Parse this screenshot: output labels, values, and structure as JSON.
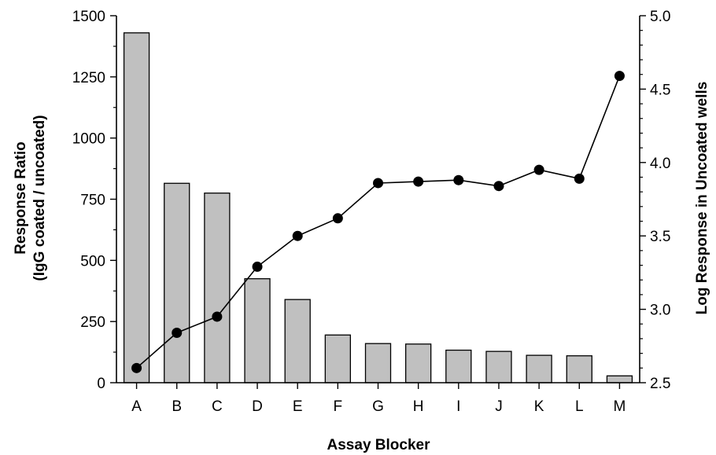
{
  "chart_data": {
    "type": "bar",
    "categories": [
      "A",
      "B",
      "C",
      "D",
      "E",
      "F",
      "G",
      "H",
      "I",
      "J",
      "K",
      "L",
      "M"
    ],
    "series": [
      {
        "axis": "left",
        "type": "bar",
        "values": [
          1430,
          815,
          775,
          425,
          340,
          195,
          160,
          158,
          133,
          128,
          112,
          110,
          28
        ]
      },
      {
        "axis": "right",
        "type": "line",
        "values": [
          2.6,
          2.84,
          2.95,
          3.29,
          3.5,
          3.62,
          3.86,
          3.87,
          3.88,
          3.84,
          3.95,
          3.89,
          4.59
        ]
      }
    ],
    "xlabel": "Assay Blocker",
    "ylabel_left_line1": "Response Ratio",
    "ylabel_left_line2": "(IgG coated / uncoated)",
    "ylabel_right": "Log Response in Uncoated wells",
    "ylim_left": [
      0,
      1500
    ],
    "yticks_left": [
      "0",
      "250",
      "500",
      "750",
      "1000",
      "1250",
      "1500"
    ],
    "ylim_right": [
      2.5,
      5.0
    ],
    "yticks_right": [
      "2.5",
      "3.0",
      "3.5",
      "4.0",
      "4.5",
      "5.0"
    ],
    "grid": false,
    "colors": {
      "bar_fill": "#c0c0c0",
      "bar_stroke": "#000000",
      "line": "#000000",
      "marker": "#000000"
    }
  }
}
